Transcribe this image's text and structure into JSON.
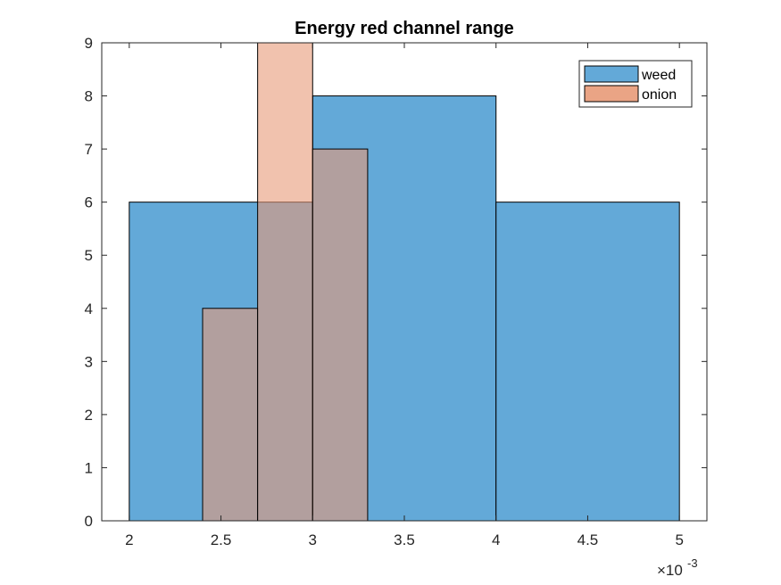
{
  "chart_data": {
    "type": "bar",
    "title": "Energy red channel range",
    "xlabel": "",
    "ylabel": "",
    "xlim": [
      0.00185,
      0.00515
    ],
    "ylim": [
      0,
      9
    ],
    "x_ticks": [
      0.002,
      0.0025,
      0.003,
      0.0035,
      0.004,
      0.0045,
      0.005
    ],
    "x_tick_labels": [
      "2",
      "2.5",
      "3",
      "3.5",
      "4",
      "4.5",
      "5"
    ],
    "x_exponent_base": "×10",
    "x_exponent_power": "-3",
    "y_ticks": [
      0,
      1,
      2,
      3,
      4,
      5,
      6,
      7,
      8,
      9
    ],
    "y_tick_labels": [
      "0",
      "1",
      "2",
      "3",
      "4",
      "5",
      "6",
      "7",
      "8",
      "9"
    ],
    "grid": false,
    "legend_position": "top-right",
    "series": [
      {
        "name": "weed",
        "color": "#0072BD",
        "fill": "#63A9D8",
        "bins": [
          {
            "x0": 0.002,
            "x1": 0.003,
            "count": 6
          },
          {
            "x0": 0.003,
            "x1": 0.004,
            "count": 8
          },
          {
            "x0": 0.004,
            "x1": 0.005,
            "count": 6
          }
        ]
      },
      {
        "name": "onion",
        "color": "#D95319",
        "fill": "#E89A78",
        "bins": [
          {
            "x0": 0.0024,
            "x1": 0.0027,
            "count": 4
          },
          {
            "x0": 0.0027,
            "x1": 0.003,
            "count": 9
          },
          {
            "x0": 0.003,
            "x1": 0.0033,
            "count": 7
          }
        ]
      }
    ]
  }
}
